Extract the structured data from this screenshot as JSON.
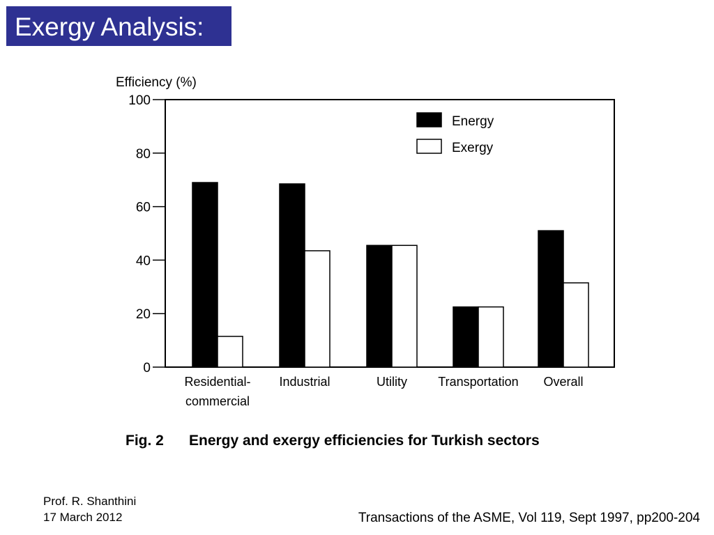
{
  "slide": {
    "title": "Exergy Analysis:",
    "title_bg": "#2e3192",
    "author": "Prof. R. Shanthini",
    "date": "17 March 2012",
    "source": "Transactions of the ASME, Vol 119, Sept 1997, pp200-204"
  },
  "chart_data": {
    "type": "bar",
    "ylabel": "Efficiency (%)",
    "ylim": [
      0,
      100
    ],
    "yticks": [
      0,
      20,
      40,
      60,
      80,
      100
    ],
    "categories": [
      [
        "Residential-",
        "commercial"
      ],
      [
        "Industrial"
      ],
      [
        "Utility"
      ],
      [
        "Transportation"
      ],
      [
        "Overall"
      ]
    ],
    "series": [
      {
        "name": "Energy",
        "values": [
          69,
          68.5,
          45.5,
          22.5,
          51
        ],
        "fill": "#000000"
      },
      {
        "name": "Exergy",
        "values": [
          11.5,
          43.5,
          45.5,
          22.5,
          31.5
        ],
        "fill": "#ffffff"
      }
    ],
    "legend_position": "top-right",
    "grid": false,
    "caption_label": "Fig. 2",
    "caption_text": "Energy and exergy efficiencies for Turkish sectors"
  }
}
